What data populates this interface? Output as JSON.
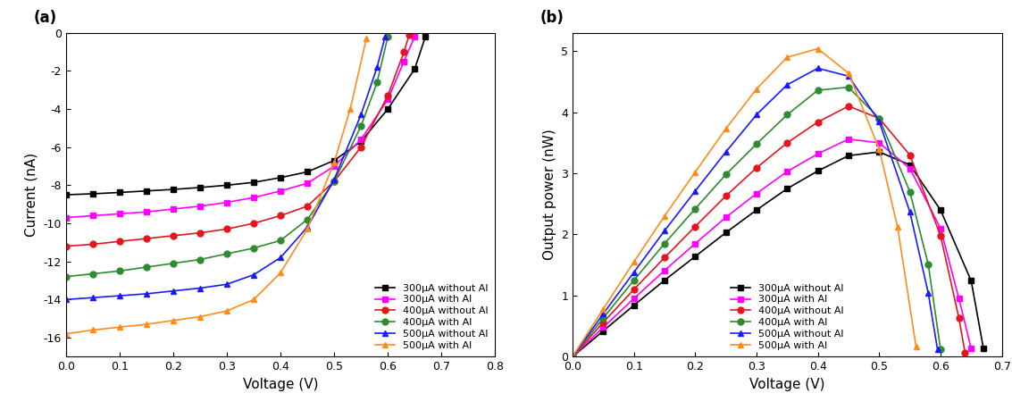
{
  "chart_data": [
    {
      "type": "line",
      "title": "(a)",
      "x_label": "Voltage (V)",
      "y_label": "Current (nA)",
      "xlim": [
        0.0,
        0.8
      ],
      "xticks": [
        0.0,
        0.1,
        0.2,
        0.3,
        0.4,
        0.5,
        0.6,
        0.7,
        0.8
      ],
      "ylim": [
        -17,
        0
      ],
      "yticks": [
        -16,
        -14,
        -12,
        -10,
        -8,
        -6,
        -4,
        -2,
        0
      ],
      "legend": "lower right",
      "series": [
        {
          "name": "300μA without Al",
          "color": "#000000",
          "marker": "square",
          "x": [
            0.0,
            0.05,
            0.1,
            0.15,
            0.2,
            0.25,
            0.3,
            0.35,
            0.4,
            0.45,
            0.5,
            0.55,
            0.6,
            0.65,
            0.67
          ],
          "values": [
            -8.5,
            -8.45,
            -8.38,
            -8.3,
            -8.22,
            -8.12,
            -8.0,
            -7.85,
            -7.6,
            -7.3,
            -6.7,
            -5.7,
            -4.0,
            -1.9,
            -0.2
          ]
        },
        {
          "name": "300μA with Al",
          "color": "#ff00ff",
          "marker": "square",
          "x": [
            0.0,
            0.05,
            0.1,
            0.15,
            0.2,
            0.25,
            0.3,
            0.35,
            0.4,
            0.45,
            0.5,
            0.55,
            0.6,
            0.63,
            0.65
          ],
          "values": [
            -9.7,
            -9.6,
            -9.5,
            -9.4,
            -9.25,
            -9.1,
            -8.9,
            -8.65,
            -8.3,
            -7.9,
            -7.0,
            -5.6,
            -3.5,
            -1.5,
            -0.2
          ]
        },
        {
          "name": "400μA without Al",
          "color": "#e3161e",
          "marker": "circle",
          "x": [
            0.0,
            0.05,
            0.1,
            0.15,
            0.2,
            0.25,
            0.3,
            0.35,
            0.4,
            0.45,
            0.5,
            0.55,
            0.6,
            0.63,
            0.64
          ],
          "values": [
            -11.2,
            -11.1,
            -10.95,
            -10.8,
            -10.65,
            -10.5,
            -10.3,
            -10.0,
            -9.6,
            -9.1,
            -7.8,
            -6.0,
            -3.3,
            -1.0,
            -0.1
          ]
        },
        {
          "name": "400μA with Al",
          "color": "#2e8b2e",
          "marker": "circle",
          "x": [
            0.0,
            0.05,
            0.1,
            0.15,
            0.2,
            0.25,
            0.3,
            0.35,
            0.4,
            0.45,
            0.5,
            0.55,
            0.58,
            0.6
          ],
          "values": [
            -12.8,
            -12.65,
            -12.5,
            -12.3,
            -12.1,
            -11.9,
            -11.6,
            -11.3,
            -10.9,
            -9.8,
            -7.8,
            -4.9,
            -2.6,
            -0.2
          ]
        },
        {
          "name": "500μA without Al",
          "color": "#1a1aff",
          "marker": "triangle",
          "x": [
            0.0,
            0.05,
            0.1,
            0.15,
            0.2,
            0.25,
            0.3,
            0.35,
            0.4,
            0.45,
            0.5,
            0.55,
            0.58,
            0.595
          ],
          "values": [
            -14.0,
            -13.9,
            -13.8,
            -13.7,
            -13.55,
            -13.4,
            -13.2,
            -12.7,
            -11.8,
            -10.2,
            -7.7,
            -4.3,
            -1.8,
            -0.2
          ]
        },
        {
          "name": "500μA with Al",
          "color": "#ff8c1a",
          "marker": "triangle",
          "x": [
            0.0,
            0.05,
            0.1,
            0.15,
            0.2,
            0.25,
            0.3,
            0.35,
            0.4,
            0.45,
            0.5,
            0.53,
            0.56
          ],
          "values": [
            -15.8,
            -15.6,
            -15.45,
            -15.3,
            -15.1,
            -14.9,
            -14.6,
            -14.0,
            -12.6,
            -10.3,
            -6.8,
            -4.0,
            -0.3
          ]
        }
      ]
    },
    {
      "type": "line",
      "title": "(b)",
      "x_label": "Voltage (V)",
      "y_label": "Output power (nW)",
      "xlim": [
        0.0,
        0.7
      ],
      "xticks": [
        0.0,
        0.1,
        0.2,
        0.3,
        0.4,
        0.5,
        0.6,
        0.7
      ],
      "ylim": [
        0,
        5.3
      ],
      "yticks": [
        0,
        1,
        2,
        3,
        4,
        5
      ],
      "legend": "lower center",
      "series": [
        {
          "name": "300μA without Al",
          "color": "#000000",
          "marker": "square",
          "x": [
            0.0,
            0.05,
            0.1,
            0.15,
            0.2,
            0.25,
            0.3,
            0.35,
            0.4,
            0.45,
            0.5,
            0.55,
            0.6,
            0.65,
            0.67
          ],
          "values": [
            0.0,
            0.42,
            0.84,
            1.25,
            1.64,
            2.03,
            2.4,
            2.75,
            3.04,
            3.29,
            3.35,
            3.14,
            2.4,
            1.24,
            0.13
          ]
        },
        {
          "name": "300μA with Al",
          "color": "#ff00ff",
          "marker": "square",
          "x": [
            0.0,
            0.05,
            0.1,
            0.15,
            0.2,
            0.25,
            0.3,
            0.35,
            0.4,
            0.45,
            0.5,
            0.55,
            0.6,
            0.63,
            0.65
          ],
          "values": [
            0.0,
            0.48,
            0.95,
            1.41,
            1.85,
            2.28,
            2.67,
            3.03,
            3.32,
            3.56,
            3.5,
            3.08,
            2.1,
            0.95,
            0.13
          ]
        },
        {
          "name": "400μA without Al",
          "color": "#e3161e",
          "marker": "circle",
          "x": [
            0.0,
            0.05,
            0.1,
            0.15,
            0.2,
            0.25,
            0.3,
            0.35,
            0.4,
            0.45,
            0.5,
            0.55,
            0.6,
            0.63,
            0.64
          ],
          "values": [
            0.0,
            0.56,
            1.1,
            1.62,
            2.13,
            2.63,
            3.09,
            3.5,
            3.84,
            4.1,
            3.9,
            3.3,
            1.98,
            0.63,
            0.06
          ]
        },
        {
          "name": "400μA with Al",
          "color": "#2e8b2e",
          "marker": "circle",
          "x": [
            0.0,
            0.05,
            0.1,
            0.15,
            0.2,
            0.25,
            0.3,
            0.35,
            0.4,
            0.45,
            0.5,
            0.55,
            0.58,
            0.6
          ],
          "values": [
            0.0,
            0.63,
            1.25,
            1.85,
            2.42,
            2.98,
            3.48,
            3.96,
            4.36,
            4.41,
            3.9,
            2.7,
            1.51,
            0.12
          ]
        },
        {
          "name": "500μA without Al",
          "color": "#1a1aff",
          "marker": "triangle",
          "x": [
            0.0,
            0.05,
            0.1,
            0.15,
            0.2,
            0.25,
            0.3,
            0.35,
            0.4,
            0.45,
            0.5,
            0.55,
            0.58,
            0.595
          ],
          "values": [
            0.0,
            0.7,
            1.38,
            2.06,
            2.71,
            3.35,
            3.96,
            4.45,
            4.72,
            4.59,
            3.85,
            2.37,
            1.04,
            0.12
          ]
        },
        {
          "name": "500μA with Al",
          "color": "#ff8c1a",
          "marker": "triangle",
          "x": [
            0.0,
            0.05,
            0.1,
            0.15,
            0.2,
            0.25,
            0.3,
            0.35,
            0.4,
            0.45,
            0.5,
            0.53,
            0.56
          ],
          "values": [
            0.0,
            0.78,
            1.55,
            2.3,
            3.02,
            3.73,
            4.38,
            4.9,
            5.04,
            4.64,
            3.4,
            2.12,
            0.17
          ]
        }
      ]
    }
  ]
}
